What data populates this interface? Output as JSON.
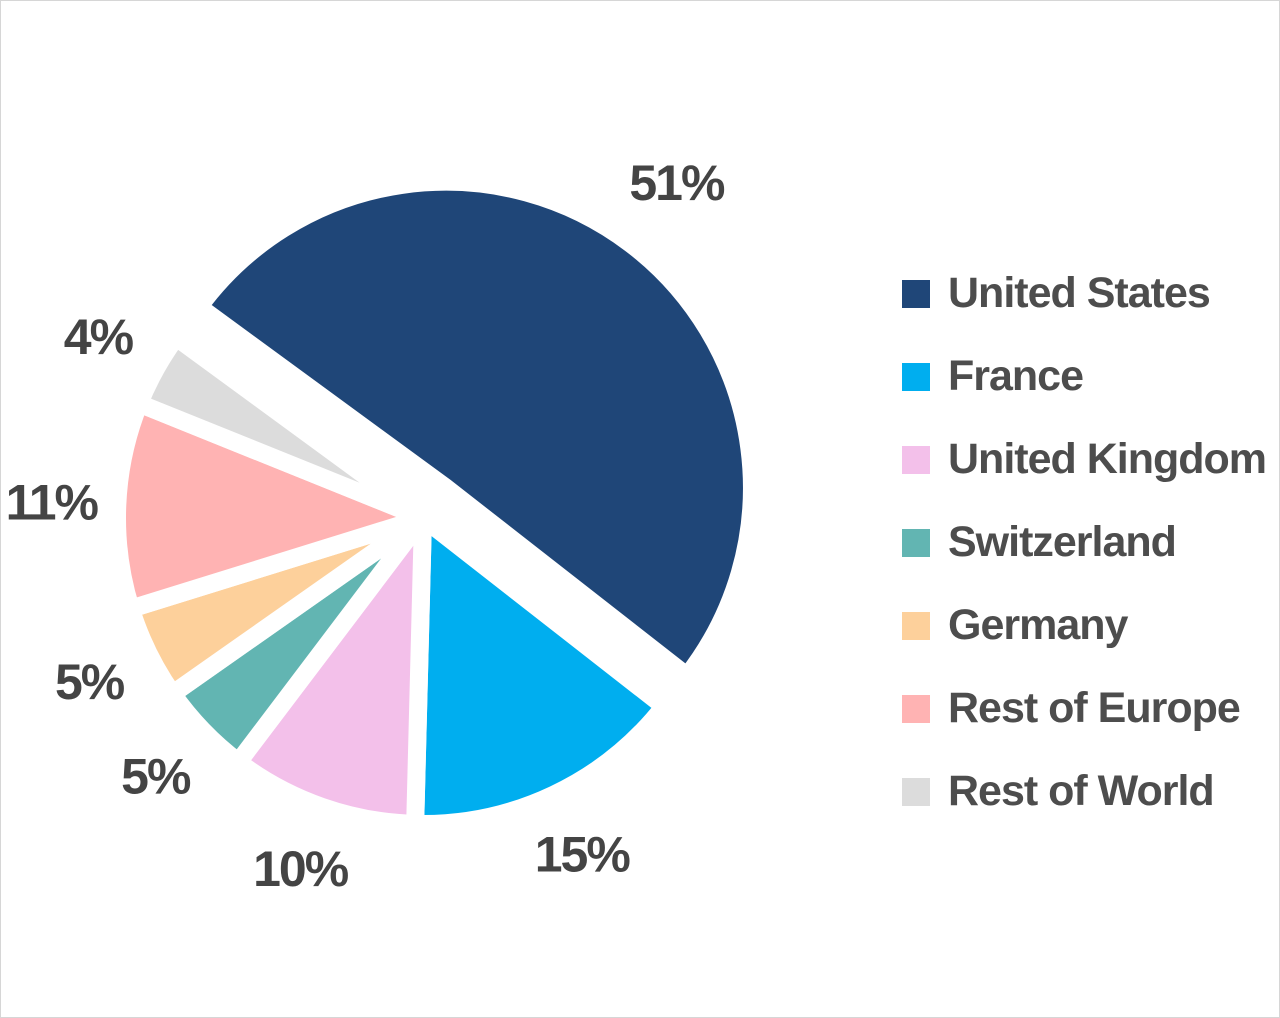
{
  "chart_data": {
    "type": "pie",
    "slices": [
      {
        "label": "United States",
        "value": 51,
        "value_label": "51%",
        "color": "#1f4678"
      },
      {
        "label": "France",
        "value": 15,
        "value_label": "15%",
        "color": "#00aeef"
      },
      {
        "label": "United Kingdom",
        "value": 10,
        "value_label": "10%",
        "color": "#f3c0ea"
      },
      {
        "label": "Switzerland",
        "value": 5,
        "value_label": "5%",
        "color": "#62b5b2"
      },
      {
        "label": "Germany",
        "value": 5,
        "value_label": "5%",
        "color": "#fdd09b"
      },
      {
        "label": "Rest of Europe",
        "value": 11,
        "value_label": "11%",
        "color": "#ffb3b3"
      },
      {
        "label": "Rest of World",
        "value": 4,
        "value_label": "4%",
        "color": "#dcdcdc"
      }
    ],
    "exploded_slices": [
      "United States"
    ],
    "legend_position": "right",
    "label_color": "#444444",
    "legend_text_color": "#4d4d4d"
  }
}
